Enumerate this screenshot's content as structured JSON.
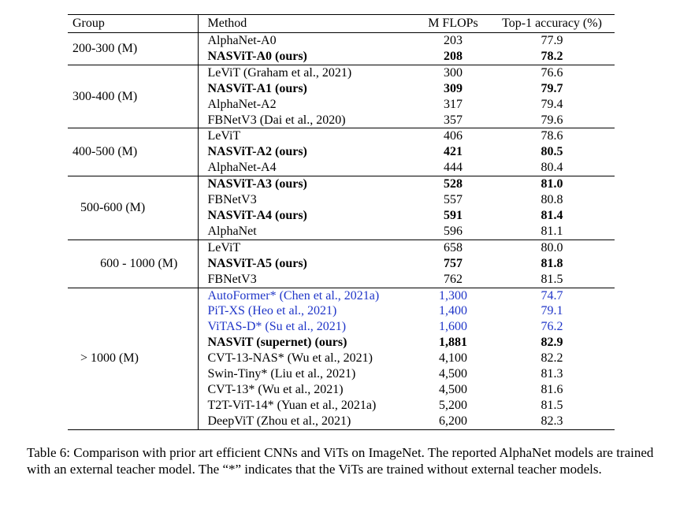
{
  "table": {
    "headers": {
      "group": "Group",
      "method": "Method",
      "flops": "M FLOPs",
      "accuracy": "Top-1 accuracy (%)"
    },
    "groups": [
      {
        "label": "200-300 (M)",
        "rows": [
          {
            "method": "AlphaNet-A0",
            "flops": "203",
            "accuracy": "77.9",
            "bold": false,
            "blue": false
          },
          {
            "method": "NASViT-A0 (ours)",
            "flops": "208",
            "accuracy": "78.2",
            "bold": true,
            "blue": false
          }
        ]
      },
      {
        "label": "300-400 (M)",
        "rows": [
          {
            "method": "LeViT (Graham et al., 2021)",
            "flops": "300",
            "accuracy": "76.6",
            "bold": false,
            "blue": false
          },
          {
            "method": "NASViT-A1 (ours)",
            "flops": "309",
            "accuracy": "79.7",
            "bold": true,
            "blue": false
          },
          {
            "method": "AlphaNet-A2",
            "flops": "317",
            "accuracy": "79.4",
            "bold": false,
            "blue": false
          },
          {
            "method": "FBNetV3  (Dai et al., 2020)",
            "flops": "357",
            "accuracy": "79.6",
            "bold": false,
            "blue": false
          }
        ]
      },
      {
        "label": "400-500 (M)",
        "rows": [
          {
            "method": "LeViT",
            "flops": "406",
            "accuracy": "78.6",
            "bold": false,
            "blue": false
          },
          {
            "method": "NASViT-A2 (ours)",
            "flops": "421",
            "accuracy": "80.5",
            "bold": true,
            "blue": false
          },
          {
            "method": "AlphaNet-A4",
            "flops": "444",
            "accuracy": "80.4",
            "bold": false,
            "blue": false
          }
        ]
      },
      {
        "label": "500-600 (M)",
        "rows": [
          {
            "method": "NASViT-A3 (ours)",
            "flops": "528",
            "accuracy": "81.0",
            "bold": true,
            "blue": false
          },
          {
            "method": "FBNetV3",
            "flops": "557",
            "accuracy": "80.8",
            "bold": false,
            "blue": false
          },
          {
            "method": "NASViT-A4 (ours)",
            "flops": "591",
            "accuracy": "81.4",
            "bold": true,
            "blue": false
          },
          {
            "method": "AlphaNet",
            "flops": "596",
            "accuracy": "81.1",
            "bold": false,
            "blue": false
          }
        ]
      },
      {
        "label": "600 - 1000 (M)",
        "rows": [
          {
            "method": "LeViT",
            "flops": "658",
            "accuracy": "80.0",
            "bold": false,
            "blue": false
          },
          {
            "method": "NASViT-A5 (ours)",
            "flops": "757",
            "accuracy": "81.8",
            "bold": true,
            "blue": false
          },
          {
            "method": "FBNetV3",
            "flops": "762",
            "accuracy": "81.5",
            "bold": false,
            "blue": false
          }
        ]
      },
      {
        "label": "> 1000 (M)",
        "rows": [
          {
            "method": "AutoFormer* (Chen et al., 2021a)",
            "flops": "1,300",
            "accuracy": "74.7",
            "bold": false,
            "blue": true
          },
          {
            "method": "PiT-XS (Heo et al., 2021)",
            "flops": "1,400",
            "accuracy": "79.1",
            "bold": false,
            "blue": true
          },
          {
            "method": "ViTAS-D* (Su et al., 2021)",
            "flops": "1,600",
            "accuracy": "76.2",
            "bold": false,
            "blue": true
          },
          {
            "method": "NASViT (supernet) (ours)",
            "flops": "1,881",
            "accuracy": "82.9",
            "bold": true,
            "blue": false
          },
          {
            "method": "CVT-13-NAS* (Wu et al., 2021)",
            "flops": "4,100",
            "accuracy": "82.2",
            "bold": false,
            "blue": false
          },
          {
            "method": "Swin-Tiny* (Liu et al., 2021)",
            "flops": "4,500",
            "accuracy": "81.3",
            "bold": false,
            "blue": false
          },
          {
            "method": "CVT-13* (Wu et al., 2021)",
            "flops": "4,500",
            "accuracy": "81.6",
            "bold": false,
            "blue": false
          },
          {
            "method": "T2T-ViT-14* (Yuan et al., 2021a)",
            "flops": "5,200",
            "accuracy": "81.5",
            "bold": false,
            "blue": false
          },
          {
            "method": "DeepViT  (Zhou et al., 2021)",
            "flops": "6,200",
            "accuracy": "82.3",
            "bold": false,
            "blue": false
          }
        ]
      }
    ]
  },
  "caption": "Table 6:  Comparison with prior art efficient CNNs and ViTs on ImageNet. The reported AlphaNet models are trained with an external teacher model. The “*” indicates that the ViTs are trained without external teacher models.",
  "colors": {
    "text": "#000000",
    "highlight_blue": "#1f35c8"
  }
}
